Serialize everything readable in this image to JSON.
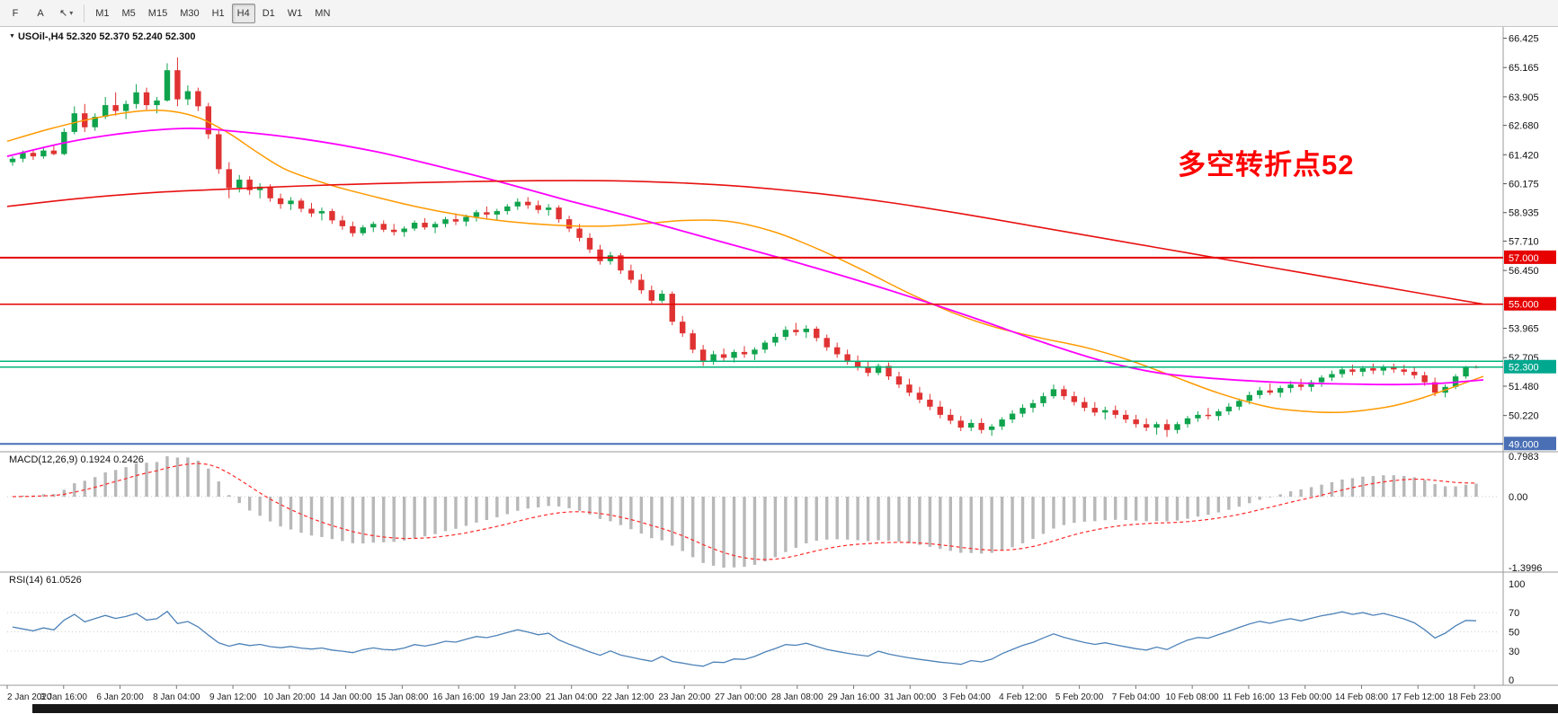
{
  "toolbar": {
    "tools": [
      {
        "name": "fibonacci-tool",
        "label": "F",
        "has_dropdown": false
      },
      {
        "name": "text-tool",
        "label": "A",
        "has_dropdown": false
      },
      {
        "name": "pointer-tool",
        "label": "↖",
        "has_dropdown": true
      }
    ],
    "timeframes": [
      "M1",
      "M5",
      "M15",
      "M30",
      "H1",
      "H4",
      "D1",
      "W1",
      "MN"
    ],
    "active_timeframe": "H4"
  },
  "chart_header": {
    "symbol_info": "USOil-,H4 52.320 52.370 52.240 52.300",
    "symbol": "USOil-",
    "timeframe": "H4",
    "open": "52.320",
    "high": "52.370",
    "low": "52.240",
    "close": "52.300"
  },
  "annotation": {
    "text": "多空转折点52",
    "color": "#ff0000"
  },
  "price_axis": {
    "range": [
      48.78,
      66.6
    ],
    "ticks": [
      66.425,
      65.165,
      63.905,
      62.68,
      61.42,
      60.175,
      58.935,
      57.71,
      56.45,
      53.965,
      52.705,
      51.48,
      50.22
    ],
    "tags": [
      {
        "label": "57.000",
        "price": 57.0,
        "bg": "#e60000"
      },
      {
        "label": "55.000",
        "price": 55.0,
        "bg": "#e60000"
      },
      {
        "label": "52.300",
        "price": 52.3,
        "bg": "#00a88f"
      },
      {
        "label": "49.000",
        "price": 49.0,
        "bg": "#4a6fb5"
      }
    ]
  },
  "macd_panel": {
    "label": "MACD(12,26,9) 0.1924 0.2426",
    "params": [
      12,
      26,
      9
    ],
    "values": [
      0.1924,
      0.2426
    ],
    "axis": [
      "0.7983",
      "0.00",
      "-1.3996"
    ],
    "range": [
      -1.3996,
      0.7983
    ],
    "histogram_color": "#b8b8b8",
    "signal_color": "#ff2a2a"
  },
  "rsi_panel": {
    "label": "RSI(14) 61.0526",
    "period": 14,
    "value": 61.0526,
    "axis": [
      "100",
      "70",
      "50",
      "30",
      "0"
    ],
    "levels": [
      70,
      50,
      30
    ],
    "range": [
      0,
      100
    ],
    "line_color": "#4d82b8"
  },
  "time_axis": {
    "labels": [
      "2 Jan 2020",
      "3 Jan 16:00",
      "6 Jan 20:00",
      "8 Jan 04:00",
      "9 Jan 12:00",
      "10 Jan 20:00",
      "14 Jan 00:00",
      "15 Jan 08:00",
      "16 Jan 16:00",
      "19 Jan 23:00",
      "21 Jan 04:00",
      "22 Jan 12:00",
      "23 Jan 20:00",
      "27 Jan 00:00",
      "28 Jan 08:00",
      "29 Jan 16:00",
      "31 Jan 00:00",
      "3 Feb 04:00",
      "4 Feb 12:00",
      "5 Feb 20:00",
      "7 Feb 04:00",
      "10 Feb 08:00",
      "11 Feb 16:00",
      "13 Feb 00:00",
      "14 Feb 08:00",
      "17 Feb 12:00",
      "18 Feb 23:00"
    ]
  },
  "chart_data": {
    "type": "candlestick",
    "symbol": "USOil-",
    "timeframe": "H4",
    "up_color": "#0fa34d",
    "down_color": "#e03232",
    "ohlc": [
      [
        61.1,
        61.35,
        60.95,
        61.25
      ],
      [
        61.25,
        61.6,
        61.1,
        61.5
      ],
      [
        61.5,
        61.65,
        61.2,
        61.35
      ],
      [
        61.35,
        61.75,
        61.25,
        61.6
      ],
      [
        61.6,
        61.8,
        61.4,
        61.45
      ],
      [
        61.45,
        62.55,
        61.4,
        62.4
      ],
      [
        62.4,
        63.5,
        62.3,
        63.2
      ],
      [
        63.2,
        63.6,
        62.4,
        62.6
      ],
      [
        62.6,
        63.2,
        62.45,
        63.05
      ],
      [
        63.05,
        63.9,
        62.95,
        63.55
      ],
      [
        63.55,
        64.1,
        63.1,
        63.3
      ],
      [
        63.3,
        63.75,
        62.95,
        63.6
      ],
      [
        63.6,
        64.45,
        63.4,
        64.1
      ],
      [
        64.1,
        64.3,
        63.35,
        63.55
      ],
      [
        63.55,
        63.9,
        63.2,
        63.75
      ],
      [
        63.75,
        65.35,
        63.7,
        65.05
      ],
      [
        65.05,
        65.6,
        63.5,
        63.8
      ],
      [
        63.8,
        64.4,
        63.55,
        64.15
      ],
      [
        64.15,
        64.3,
        63.3,
        63.5
      ],
      [
        63.5,
        63.65,
        62.1,
        62.3
      ],
      [
        62.3,
        62.45,
        60.6,
        60.8
      ],
      [
        60.8,
        61.1,
        59.55,
        60.0
      ],
      [
        60.0,
        60.55,
        59.8,
        60.35
      ],
      [
        60.35,
        60.5,
        59.7,
        59.9
      ],
      [
        59.9,
        60.2,
        59.55,
        60.05
      ],
      [
        60.05,
        60.15,
        59.4,
        59.55
      ],
      [
        59.55,
        59.75,
        59.1,
        59.3
      ],
      [
        59.3,
        59.6,
        59.05,
        59.45
      ],
      [
        59.45,
        59.55,
        58.95,
        59.1
      ],
      [
        59.1,
        59.35,
        58.75,
        58.9
      ],
      [
        58.9,
        59.15,
        58.6,
        59.0
      ],
      [
        59.0,
        59.1,
        58.45,
        58.6
      ],
      [
        58.6,
        58.8,
        58.2,
        58.35
      ],
      [
        58.35,
        58.55,
        57.9,
        58.05
      ],
      [
        58.05,
        58.4,
        57.95,
        58.3
      ],
      [
        58.3,
        58.55,
        58.1,
        58.45
      ],
      [
        58.45,
        58.6,
        58.1,
        58.2
      ],
      [
        58.2,
        58.45,
        57.95,
        58.1
      ],
      [
        58.1,
        58.35,
        57.9,
        58.25
      ],
      [
        58.25,
        58.6,
        58.15,
        58.5
      ],
      [
        58.5,
        58.7,
        58.2,
        58.3
      ],
      [
        58.3,
        58.55,
        58.05,
        58.45
      ],
      [
        58.45,
        58.75,
        58.3,
        58.65
      ],
      [
        58.65,
        58.9,
        58.4,
        58.55
      ],
      [
        58.55,
        58.85,
        58.35,
        58.75
      ],
      [
        58.75,
        59.05,
        58.55,
        58.95
      ],
      [
        58.95,
        59.2,
        58.7,
        58.85
      ],
      [
        58.85,
        59.1,
        58.6,
        59.0
      ],
      [
        59.0,
        59.3,
        58.85,
        59.2
      ],
      [
        59.2,
        59.55,
        59.05,
        59.4
      ],
      [
        59.4,
        59.6,
        59.1,
        59.25
      ],
      [
        59.25,
        59.45,
        58.9,
        59.05
      ],
      [
        59.05,
        59.3,
        58.8,
        59.15
      ],
      [
        59.15,
        59.25,
        58.5,
        58.65
      ],
      [
        58.65,
        58.8,
        58.1,
        58.25
      ],
      [
        58.25,
        58.45,
        57.7,
        57.85
      ],
      [
        57.85,
        58.05,
        57.2,
        57.35
      ],
      [
        57.35,
        57.55,
        56.7,
        56.85
      ],
      [
        56.85,
        57.25,
        56.7,
        57.1
      ],
      [
        57.1,
        57.2,
        56.3,
        56.45
      ],
      [
        56.45,
        56.7,
        55.9,
        56.05
      ],
      [
        56.05,
        56.3,
        55.45,
        55.6
      ],
      [
        55.6,
        55.8,
        55.0,
        55.15
      ],
      [
        55.15,
        55.6,
        55.05,
        55.45
      ],
      [
        55.45,
        55.55,
        54.1,
        54.25
      ],
      [
        54.25,
        54.5,
        53.6,
        53.75
      ],
      [
        53.75,
        53.9,
        52.9,
        53.05
      ],
      [
        53.05,
        53.25,
        52.35,
        52.55
      ],
      [
        52.55,
        53.0,
        52.4,
        52.85
      ],
      [
        52.85,
        53.1,
        52.55,
        52.7
      ],
      [
        52.7,
        53.05,
        52.5,
        52.95
      ],
      [
        52.95,
        53.2,
        52.7,
        52.85
      ],
      [
        52.85,
        53.15,
        52.6,
        53.05
      ],
      [
        53.05,
        53.45,
        52.9,
        53.35
      ],
      [
        53.35,
        53.75,
        53.2,
        53.6
      ],
      [
        53.6,
        54.05,
        53.45,
        53.9
      ],
      [
        53.9,
        54.2,
        53.65,
        53.8
      ],
      [
        53.8,
        54.1,
        53.55,
        53.95
      ],
      [
        53.95,
        54.05,
        53.4,
        53.55
      ],
      [
        53.55,
        53.7,
        53.0,
        53.15
      ],
      [
        53.15,
        53.35,
        52.7,
        52.85
      ],
      [
        52.85,
        53.05,
        52.4,
        52.55
      ],
      [
        52.55,
        52.8,
        52.15,
        52.3
      ],
      [
        52.3,
        52.55,
        51.9,
        52.05
      ],
      [
        52.05,
        52.45,
        51.95,
        52.35
      ],
      [
        52.35,
        52.5,
        51.75,
        51.9
      ],
      [
        51.9,
        52.1,
        51.4,
        51.55
      ],
      [
        51.55,
        51.8,
        51.05,
        51.2
      ],
      [
        51.2,
        51.45,
        50.75,
        50.9
      ],
      [
        50.9,
        51.15,
        50.45,
        50.6
      ],
      [
        50.6,
        50.85,
        50.1,
        50.25
      ],
      [
        50.25,
        50.5,
        49.85,
        50.0
      ],
      [
        50.0,
        50.2,
        49.55,
        49.7
      ],
      [
        49.7,
        50.05,
        49.55,
        49.9
      ],
      [
        49.9,
        50.1,
        49.45,
        49.6
      ],
      [
        49.6,
        49.85,
        49.35,
        49.75
      ],
      [
        49.75,
        50.15,
        49.6,
        50.05
      ],
      [
        50.05,
        50.45,
        49.9,
        50.3
      ],
      [
        50.3,
        50.7,
        50.15,
        50.55
      ],
      [
        50.55,
        50.9,
        50.35,
        50.75
      ],
      [
        50.75,
        51.2,
        50.6,
        51.05
      ],
      [
        51.05,
        51.55,
        50.95,
        51.35
      ],
      [
        51.35,
        51.5,
        50.9,
        51.05
      ],
      [
        51.05,
        51.25,
        50.65,
        50.8
      ],
      [
        50.8,
        51.0,
        50.4,
        50.55
      ],
      [
        50.55,
        50.8,
        50.2,
        50.35
      ],
      [
        50.35,
        50.6,
        50.05,
        50.45
      ],
      [
        50.45,
        50.65,
        50.1,
        50.25
      ],
      [
        50.25,
        50.45,
        49.9,
        50.05
      ],
      [
        50.05,
        50.25,
        49.7,
        49.85
      ],
      [
        49.85,
        50.1,
        49.55,
        49.7
      ],
      [
        49.7,
        49.95,
        49.4,
        49.85
      ],
      [
        49.85,
        50.05,
        49.3,
        49.6
      ],
      [
        49.6,
        49.95,
        49.45,
        49.85
      ],
      [
        49.85,
        50.2,
        49.7,
        50.1
      ],
      [
        50.1,
        50.4,
        49.95,
        50.25
      ],
      [
        50.25,
        50.55,
        50.05,
        50.2
      ],
      [
        50.2,
        50.5,
        50.0,
        50.4
      ],
      [
        50.4,
        50.75,
        50.25,
        50.6
      ],
      [
        50.6,
        50.95,
        50.45,
        50.85
      ],
      [
        50.85,
        51.25,
        50.7,
        51.1
      ],
      [
        51.1,
        51.45,
        50.95,
        51.3
      ],
      [
        51.3,
        51.6,
        51.1,
        51.2
      ],
      [
        51.2,
        51.5,
        51.0,
        51.4
      ],
      [
        51.4,
        51.7,
        51.2,
        51.55
      ],
      [
        51.55,
        51.8,
        51.3,
        51.45
      ],
      [
        51.45,
        51.75,
        51.25,
        51.65
      ],
      [
        51.65,
        51.95,
        51.45,
        51.85
      ],
      [
        51.85,
        52.15,
        51.7,
        52.0
      ],
      [
        52.0,
        52.3,
        51.85,
        52.2
      ],
      [
        52.2,
        52.4,
        51.95,
        52.1
      ],
      [
        52.1,
        52.35,
        51.9,
        52.25
      ],
      [
        52.25,
        52.45,
        52.0,
        52.15
      ],
      [
        52.15,
        52.4,
        51.95,
        52.3
      ],
      [
        52.3,
        52.45,
        52.05,
        52.2
      ],
      [
        52.2,
        52.4,
        51.95,
        52.1
      ],
      [
        52.1,
        52.3,
        51.8,
        51.95
      ],
      [
        51.95,
        52.1,
        51.5,
        51.65
      ],
      [
        51.65,
        51.85,
        51.05,
        51.2
      ],
      [
        51.2,
        51.55,
        51.0,
        51.45
      ],
      [
        51.45,
        52.0,
        51.35,
        51.9
      ],
      [
        51.9,
        52.35,
        51.8,
        52.32
      ],
      [
        52.32,
        52.37,
        52.24,
        52.3
      ]
    ],
    "hlines": [
      {
        "price": 57.0,
        "color": "#e60000",
        "width": 2
      },
      {
        "price": 55.0,
        "color": "#e60000",
        "width": 1.6
      },
      {
        "price": 52.55,
        "color": "#00b579",
        "width": 1.6
      },
      {
        "price": 52.3,
        "color": "#00b579",
        "width": 1.6
      },
      {
        "price": 49.0,
        "color": "#4a6fb5",
        "width": 2
      }
    ],
    "moving_averages": [
      {
        "name": "ma-fast-orange",
        "color": "#ff9a00",
        "width": 1.5,
        "points": [
          [
            0,
            62.0
          ],
          [
            0.03,
            62.55
          ],
          [
            0.06,
            63.0
          ],
          [
            0.09,
            63.3
          ],
          [
            0.11,
            63.3
          ],
          [
            0.13,
            63.0
          ],
          [
            0.15,
            62.35
          ],
          [
            0.17,
            61.5
          ],
          [
            0.19,
            60.75
          ],
          [
            0.22,
            60.1
          ],
          [
            0.25,
            59.6
          ],
          [
            0.28,
            59.15
          ],
          [
            0.31,
            58.8
          ],
          [
            0.34,
            58.55
          ],
          [
            0.37,
            58.4
          ],
          [
            0.4,
            58.35
          ],
          [
            0.43,
            58.45
          ],
          [
            0.46,
            58.6
          ],
          [
            0.49,
            58.55
          ],
          [
            0.52,
            58.1
          ],
          [
            0.55,
            57.35
          ],
          [
            0.58,
            56.45
          ],
          [
            0.61,
            55.5
          ],
          [
            0.64,
            54.65
          ],
          [
            0.67,
            54.0
          ],
          [
            0.7,
            53.55
          ],
          [
            0.73,
            53.15
          ],
          [
            0.76,
            52.6
          ],
          [
            0.79,
            51.9
          ],
          [
            0.82,
            51.2
          ],
          [
            0.85,
            50.65
          ],
          [
            0.87,
            50.45
          ],
          [
            0.9,
            50.35
          ],
          [
            0.92,
            50.45
          ],
          [
            0.94,
            50.65
          ],
          [
            0.96,
            51.0
          ],
          [
            0.98,
            51.45
          ],
          [
            1,
            51.9
          ]
        ]
      },
      {
        "name": "ma-medium-magenta",
        "color": "#ff00ff",
        "width": 1.8,
        "points": [
          [
            0,
            61.35
          ],
          [
            0.04,
            61.95
          ],
          [
            0.08,
            62.35
          ],
          [
            0.12,
            62.55
          ],
          [
            0.15,
            62.45
          ],
          [
            0.2,
            62.1
          ],
          [
            0.25,
            61.55
          ],
          [
            0.3,
            60.8
          ],
          [
            0.34,
            60.15
          ],
          [
            0.38,
            59.45
          ],
          [
            0.42,
            58.8
          ],
          [
            0.46,
            58.1
          ],
          [
            0.5,
            57.4
          ],
          [
            0.54,
            56.7
          ],
          [
            0.58,
            55.95
          ],
          [
            0.62,
            55.15
          ],
          [
            0.66,
            54.3
          ],
          [
            0.7,
            53.4
          ],
          [
            0.74,
            52.6
          ],
          [
            0.78,
            52.05
          ],
          [
            0.82,
            51.8
          ],
          [
            0.86,
            51.65
          ],
          [
            0.9,
            51.58
          ],
          [
            0.94,
            51.55
          ],
          [
            0.97,
            51.6
          ],
          [
            1,
            51.75
          ]
        ]
      },
      {
        "name": "ma-slow-red",
        "color": "#e81010",
        "width": 1.6,
        "points": [
          [
            0,
            59.2
          ],
          [
            0.05,
            59.55
          ],
          [
            0.1,
            59.8
          ],
          [
            0.15,
            59.95
          ],
          [
            0.2,
            60.08
          ],
          [
            0.25,
            60.18
          ],
          [
            0.3,
            60.25
          ],
          [
            0.35,
            60.3
          ],
          [
            0.41,
            60.3
          ],
          [
            0.46,
            60.2
          ],
          [
            0.5,
            60.05
          ],
          [
            0.55,
            59.75
          ],
          [
            0.6,
            59.35
          ],
          [
            0.65,
            58.85
          ],
          [
            0.7,
            58.3
          ],
          [
            0.75,
            57.75
          ],
          [
            0.8,
            57.2
          ],
          [
            0.85,
            56.65
          ],
          [
            0.9,
            56.1
          ],
          [
            0.95,
            55.55
          ],
          [
            1,
            55.0
          ]
        ]
      }
    ]
  }
}
